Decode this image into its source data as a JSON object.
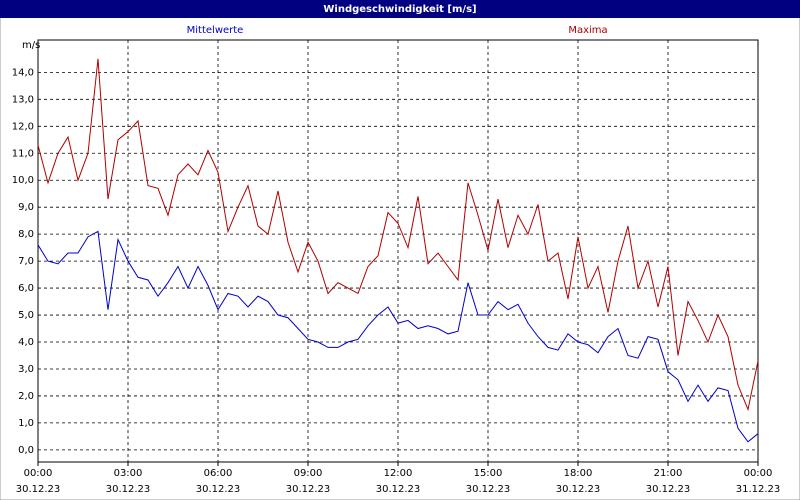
{
  "chart_data": {
    "type": "line",
    "title": "Windgeschwindigkeit [m/s]",
    "y_label": "m/s",
    "x": [
      0,
      20,
      40,
      60,
      80,
      100,
      120,
      140,
      160,
      180,
      200,
      220,
      240,
      260,
      280,
      300,
      320,
      340,
      360,
      380,
      400,
      420,
      440,
      460,
      480,
      500,
      520,
      540,
      560,
      580,
      600,
      620,
      640,
      660,
      680,
      700,
      720,
      740,
      760,
      780,
      800,
      820,
      840,
      860,
      880,
      900,
      920,
      940,
      960,
      980,
      1000,
      1020,
      1040,
      1060,
      1080,
      1100,
      1120,
      1140,
      1160,
      1180,
      1200,
      1220,
      1240,
      1260,
      1280,
      1300,
      1320,
      1340,
      1360,
      1380,
      1400,
      1420,
      1440
    ],
    "series": [
      {
        "name": "Mittelwerte",
        "color": "#0000cc",
        "values": [
          7.6,
          7.0,
          6.9,
          7.3,
          7.3,
          7.9,
          8.1,
          5.2,
          7.8,
          7.0,
          6.4,
          6.3,
          5.7,
          6.2,
          6.8,
          6.0,
          6.8,
          6.1,
          5.2,
          5.8,
          5.7,
          5.3,
          5.7,
          5.5,
          5.0,
          4.9,
          4.5,
          4.1,
          4.0,
          3.8,
          3.8,
          4.0,
          4.1,
          4.6,
          5.0,
          5.3,
          4.7,
          4.8,
          4.5,
          4.6,
          4.5,
          4.3,
          4.4,
          6.2,
          5.0,
          5.0,
          5.5,
          5.2,
          5.4,
          4.7,
          4.2,
          3.8,
          3.7,
          4.3,
          4.0,
          3.9,
          3.6,
          4.2,
          4.5,
          3.5,
          3.4,
          4.2,
          4.1,
          2.9,
          2.6,
          1.8,
          2.4,
          1.8,
          2.3,
          2.2,
          0.8,
          0.3,
          0.6
        ]
      },
      {
        "name": "Maxima",
        "color": "#b00000",
        "values": [
          11.3,
          9.9,
          11.0,
          11.6,
          10.0,
          11.0,
          14.5,
          9.3,
          11.5,
          11.8,
          12.2,
          9.8,
          9.7,
          8.7,
          10.2,
          10.6,
          10.2,
          11.1,
          10.3,
          8.1,
          9.0,
          9.8,
          8.3,
          8.0,
          9.6,
          7.7,
          6.6,
          7.7,
          7.0,
          5.8,
          6.2,
          6.0,
          5.8,
          6.8,
          7.2,
          8.8,
          8.4,
          7.5,
          9.4,
          6.9,
          7.3,
          6.8,
          6.3,
          9.9,
          8.7,
          7.4,
          9.3,
          7.5,
          8.7,
          8.0,
          9.1,
          7.0,
          7.3,
          5.6,
          7.9,
          6.0,
          6.8,
          5.1,
          7.0,
          8.3,
          6.0,
          7.0,
          5.3,
          6.8,
          3.5,
          5.5,
          4.8,
          4.0,
          5.0,
          4.2,
          2.4,
          1.5,
          3.3
        ]
      }
    ],
    "xlim": [
      0,
      1440
    ],
    "xticks": [
      {
        "value": 0,
        "label": "00:00",
        "date": "30.12.23"
      },
      {
        "value": 180,
        "label": "03:00",
        "date": "30.12.23"
      },
      {
        "value": 360,
        "label": "06:00",
        "date": "30.12.23"
      },
      {
        "value": 540,
        "label": "09:00",
        "date": "30.12.23"
      },
      {
        "value": 720,
        "label": "12:00",
        "date": "30.12.23"
      },
      {
        "value": 900,
        "label": "15:00",
        "date": "30.12.23"
      },
      {
        "value": 1080,
        "label": "18:00",
        "date": "30.12.23"
      },
      {
        "value": 1260,
        "label": "21:00",
        "date": "30.12.23"
      },
      {
        "value": 1440,
        "label": "00:00",
        "date": "31.12.23"
      }
    ],
    "ylim": [
      -0.45,
      15.2
    ],
    "yticks": [
      {
        "value": 0,
        "label": "0,0"
      },
      {
        "value": 1,
        "label": "1,0"
      },
      {
        "value": 2,
        "label": "2,0"
      },
      {
        "value": 3,
        "label": "3,0"
      },
      {
        "value": 4,
        "label": "4,0"
      },
      {
        "value": 5,
        "label": "5,0"
      },
      {
        "value": 6,
        "label": "6,0"
      },
      {
        "value": 7,
        "label": "7,0"
      },
      {
        "value": 8,
        "label": "8,0"
      },
      {
        "value": 9,
        "label": "9,0"
      },
      {
        "value": 10,
        "label": "10,0"
      },
      {
        "value": 11,
        "label": "11,0"
      },
      {
        "value": 12,
        "label": "12,0"
      },
      {
        "value": 13,
        "label": "13,0"
      },
      {
        "value": 14,
        "label": "14,0"
      }
    ],
    "grid": true
  }
}
